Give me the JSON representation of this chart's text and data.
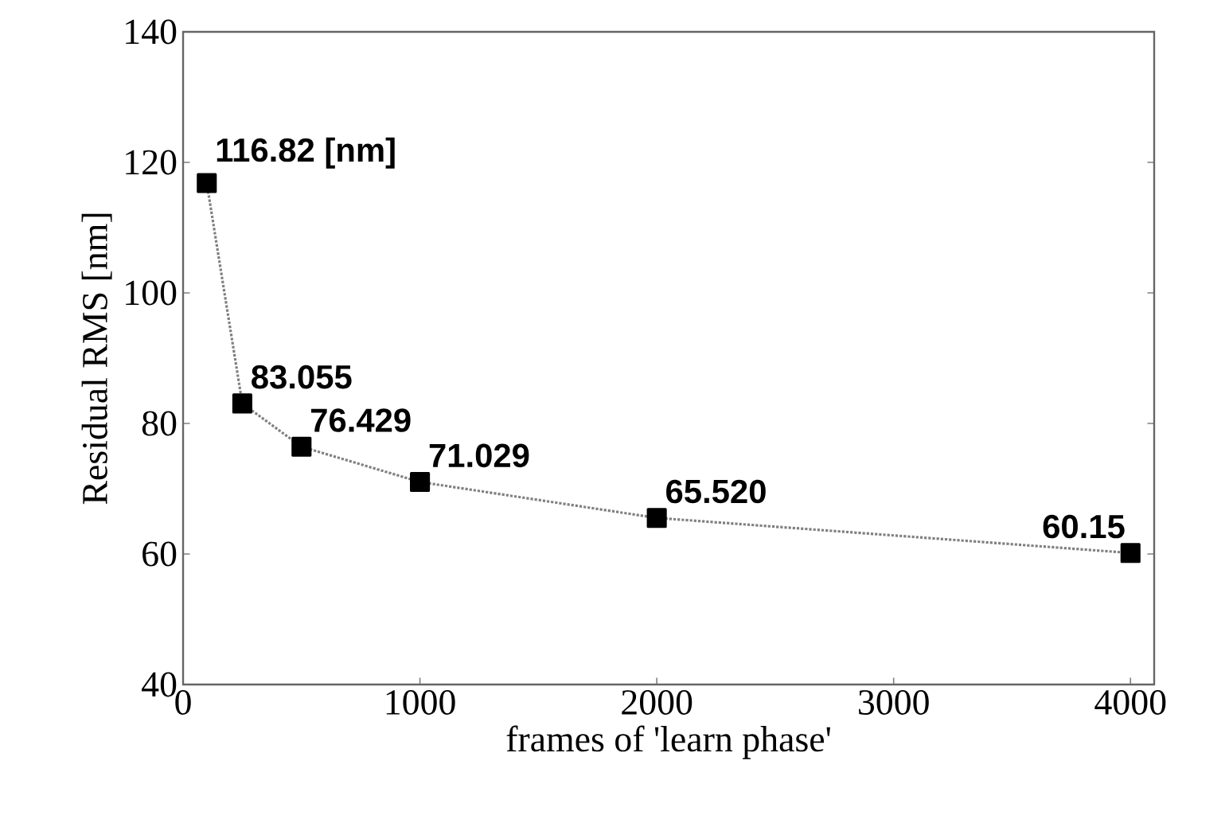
{
  "chart_data": {
    "type": "line",
    "xlabel": "frames of 'learn phase'",
    "ylabel": "Residual RMS [nm]",
    "x": [
      100,
      250,
      500,
      1000,
      2000,
      4000
    ],
    "series": [
      {
        "color": "#000000",
        "values": [
          116.82,
          83.055,
          76.429,
          71.029,
          65.52,
          60.15
        ],
        "value_labels": [
          "116.82 [nm]",
          "83.055",
          "76.429",
          "71.029",
          "65.520",
          "60.15"
        ]
      }
    ],
    "xlim": [
      0,
      4100
    ],
    "ylim": [
      40,
      140
    ],
    "xticks": [
      0,
      1000,
      2000,
      3000,
      4000
    ],
    "yticks": [
      40,
      60,
      80,
      100,
      120,
      140
    ],
    "marker": "square",
    "line_style": "dotted",
    "grid": false
  }
}
